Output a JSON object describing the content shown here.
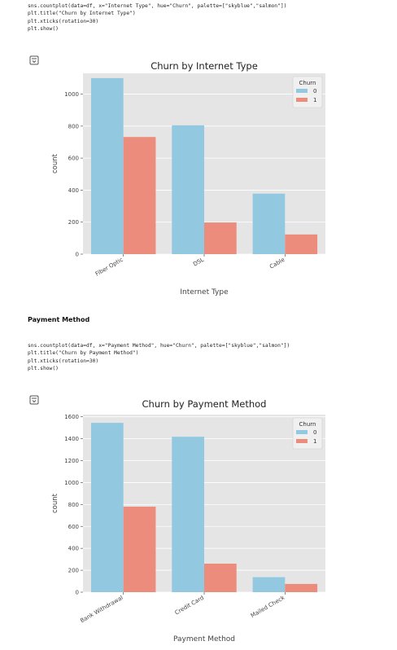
{
  "cells": [
    {
      "code_lines": [
        "sns.countplot(data=df, x=\"Internet Type\", hue=\"Churn\", palette=[\"skyblue\",\"salmon\"])",
        "plt.title(\"Churn by Internet Type\")",
        "plt.xticks(rotation=30)",
        "plt.show()"
      ],
      "output_icon": "output-toggle-icon"
    },
    {
      "markdown": "Payment Method",
      "code_lines": [
        "sns.countplot(data=df, x=\"Payment Method\", hue=\"Churn\", palette=[\"skyblue\",\"salmon\"])",
        "plt.title(\"Churn by Payment Method\")",
        "plt.xticks(rotation=30)",
        "plt.show()"
      ],
      "output_icon": "output-toggle-icon"
    }
  ],
  "colors": {
    "series0": "#92c9e1",
    "series1": "#ec8c7d",
    "plot_bg": "#e5e5e5",
    "grid": "#ffffff"
  },
  "chart_data": [
    {
      "type": "bar",
      "title": "Churn by Internet Type",
      "xlabel": "Internet Type",
      "ylabel": "count",
      "categories": [
        "Fiber Optic",
        "DSL",
        "Cable"
      ],
      "series": [
        {
          "name": "0",
          "values": [
            1100,
            805,
            378
          ]
        },
        {
          "name": "1",
          "values": [
            732,
            198,
            123
          ]
        }
      ],
      "ylim": [
        0,
        1130
      ],
      "yticks": [
        0,
        200,
        400,
        600,
        800,
        1000
      ],
      "legend_title": "Churn",
      "legend_position": "top-right",
      "grid": true
    },
    {
      "type": "bar",
      "title": "Churn by Payment Method",
      "xlabel": "Payment Method",
      "ylabel": "count",
      "categories": [
        "Bank Withdrawal",
        "Credit Card",
        "Mailed Check"
      ],
      "series": [
        {
          "name": "0",
          "values": [
            1545,
            1418,
            137
          ]
        },
        {
          "name": "1",
          "values": [
            780,
            260,
            75
          ]
        }
      ],
      "ylim": [
        0,
        1620
      ],
      "yticks": [
        0,
        200,
        400,
        600,
        800,
        1000,
        1200,
        1400,
        1600
      ],
      "legend_title": "Churn",
      "legend_position": "top-right",
      "grid": true
    }
  ]
}
